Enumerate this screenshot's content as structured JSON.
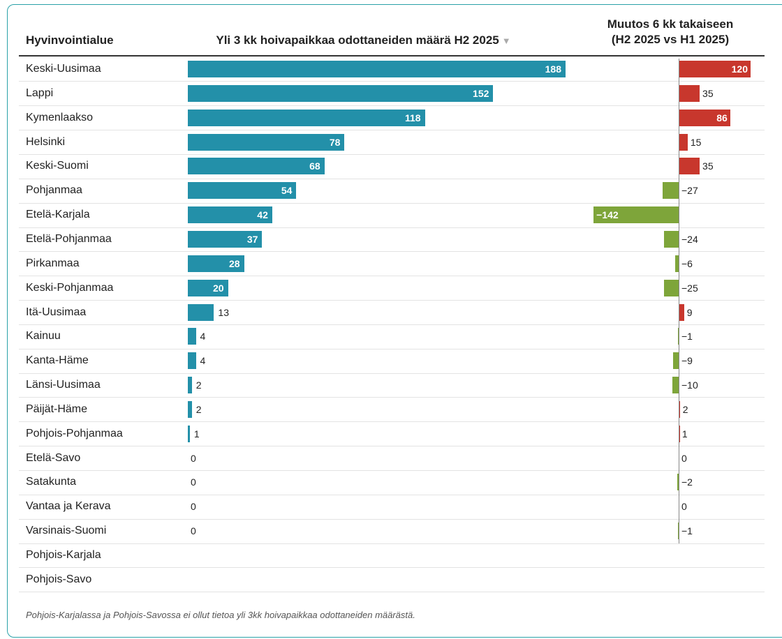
{
  "header": {
    "region_label": "Hyvinvointialue",
    "value_label": "Yli 3 kk hoivapaikkaa odottaneiden määrä H2 2025",
    "sort_icon": "▼",
    "change_label_line1": "Muutos 6 kk takaiseen",
    "change_label_line2": "(H2 2025 vs H1 2025)"
  },
  "footnote": "Pohjois-Karjalassa ja Pohjois-Savossa ei ollut tietoa yli 3kk hoivapaikkaa odottaneiden määrästä.",
  "colors": {
    "value_bar": "#2390a9",
    "increase": "#c8372d",
    "decrease": "#7ea53a",
    "accent_border": "#2aa1a8"
  },
  "chart_data": {
    "type": "bar",
    "categories": [
      "Keski-Uusimaa",
      "Lappi",
      "Kymenlaakso",
      "Helsinki",
      "Keski-Suomi",
      "Pohjanmaa",
      "Etelä-Karjala",
      "Etelä-Pohjanmaa",
      "Pirkanmaa",
      "Keski-Pohjanmaa",
      "Itä-Uusimaa",
      "Kainuu",
      "Kanta-Häme",
      "Länsi-Uusimaa",
      "Päijät-Häme",
      "Pohjois-Pohjanmaa",
      "Etelä-Savo",
      "Satakunta",
      "Vantaa ja Kerava",
      "Varsinais-Suomi",
      "Pohjois-Karjala",
      "Pohjois-Savo"
    ],
    "series": [
      {
        "name": "Yli 3 kk hoivapaikkaa odottaneiden määrä H2 2025",
        "values": [
          188,
          152,
          118,
          78,
          68,
          54,
          42,
          37,
          28,
          20,
          13,
          4,
          4,
          2,
          2,
          1,
          0,
          0,
          0,
          0,
          null,
          null
        ]
      },
      {
        "name": "Muutos 6 kk takaiseen (H2 2025 vs H1 2025)",
        "values": [
          120,
          35,
          86,
          15,
          35,
          -27,
          -142,
          -24,
          -6,
          -25,
          9,
          -1,
          -9,
          -10,
          2,
          1,
          0,
          -2,
          0,
          -1,
          null,
          null
        ],
        "labels": [
          "120",
          "35",
          "86",
          "15",
          "35",
          "−27",
          "−142",
          "−24",
          "−6",
          "−25",
          "9",
          "−1",
          "−9",
          "−10",
          "2",
          "1",
          "0",
          "−2",
          "0",
          "−1",
          null,
          null
        ]
      }
    ]
  }
}
